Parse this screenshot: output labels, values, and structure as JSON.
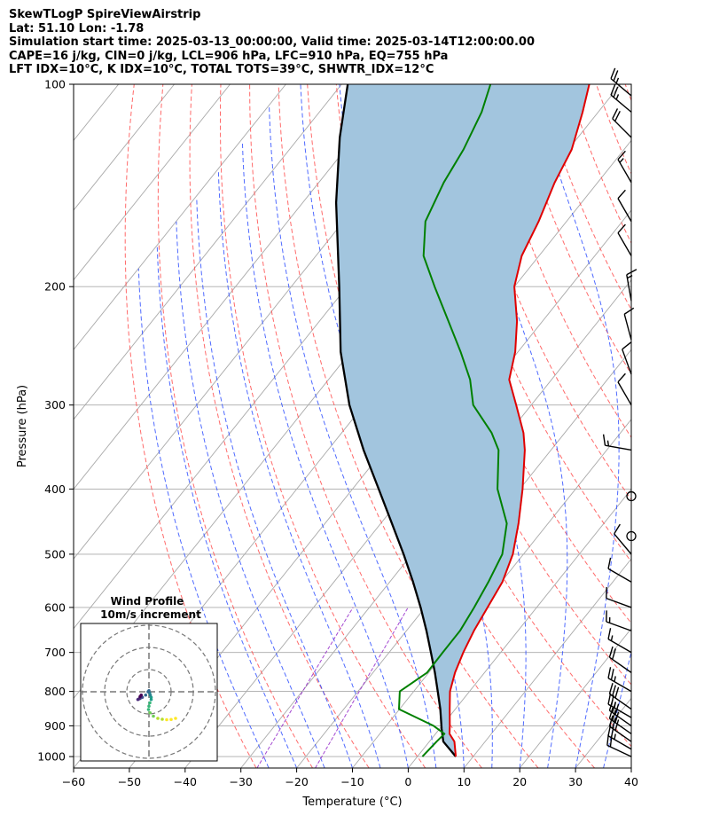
{
  "header": {
    "line1": "SkewTLogP SpireViewAirstrip",
    "line2": "Lat: 51.10   Lon: -1.78",
    "line3": "Simulation start time: 2025-03-13_00:00:00, Valid time: 2025-03-14T12:00:00.00",
    "line4": "CAPE=16 j/kg, CIN=0 j/kg, LCL=906 hPa, LFC=910 hPa, EQ=755 hPa",
    "line5": "LFT IDX=10°C, K IDX=10°C, TOTAL TOTS=39°C, SHWTR_IDX=12°C"
  },
  "colors": {
    "temperature": "#e00000",
    "dewpoint": "#008000",
    "parcel": "#000000",
    "cape_fill": "#a2c5de",
    "dry_adiabat": "#ff5050",
    "moist_adiabat": "#3050ff",
    "mixing_ratio": "#9933cc",
    "isotherm": "#aaaaaa",
    "isobar": "#aaaaaa"
  },
  "chart_data": {
    "type": "skewt",
    "xlabel": "Temperature ($^\\circ$C)",
    "ylabel": "Pressure (hPa)",
    "xlim": [
      -60,
      40
    ],
    "ylim": [
      1040,
      100
    ],
    "x_ticks": [
      -60,
      -50,
      -40,
      -30,
      -20,
      -10,
      0,
      10,
      20,
      30,
      40
    ],
    "y_ticks": [
      1000,
      900,
      800,
      700,
      600,
      500,
      400,
      300,
      200,
      100
    ],
    "y_scale": "log",
    "grid": true,
    "temperature": {
      "pressure": [
        1000,
        950,
        925,
        900,
        850,
        800,
        750,
        700,
        650,
        600,
        550,
        500,
        450,
        400,
        350,
        330,
        300,
        275,
        250,
        225,
        200,
        180,
        160,
        140,
        125,
        110,
        100
      ],
      "values": [
        6.9,
        4.5,
        2.5,
        1.4,
        -1.0,
        -3.5,
        -5.3,
        -6.7,
        -7.9,
        -8.8,
        -9.8,
        -11.9,
        -15.3,
        -19.5,
        -24.7,
        -27.4,
        -32.7,
        -37.6,
        -40.5,
        -44.6,
        -50.0,
        -53.1,
        -55.0,
        -57.7,
        -59.4,
        -62.8,
        -65.6
      ]
    },
    "dewpoint": {
      "pressure": [
        1000,
        950,
        925,
        900,
        850,
        800,
        750,
        700,
        650,
        600,
        550,
        500,
        450,
        400,
        350,
        330,
        300,
        275,
        250,
        225,
        200,
        180,
        160,
        140,
        125,
        110,
        100
      ],
      "values": [
        0.9,
        1.3,
        1.6,
        -1.5,
        -10.1,
        -12.5,
        -10.3,
        -10.4,
        -10.4,
        -11.2,
        -12.3,
        -13.8,
        -17.4,
        -24.0,
        -29.4,
        -33.1,
        -40.4,
        -44.6,
        -50.3,
        -56.9,
        -64.3,
        -70.7,
        -75.3,
        -77.6,
        -78.8,
        -80.9,
        -83.3
      ]
    },
    "parcel": {
      "pressure": [
        1000,
        950,
        910,
        850,
        800,
        750,
        700,
        650,
        600,
        550,
        500,
        450,
        400,
        350,
        300,
        250,
        200,
        150,
        120,
        100
      ],
      "values": [
        6.9,
        2.5,
        0.4,
        -2.7,
        -5.7,
        -8.9,
        -12.5,
        -16.4,
        -20.8,
        -25.8,
        -31.5,
        -38.0,
        -45.3,
        -53.6,
        -62.6,
        -71.8,
        -81.4,
        -94.0,
        -102.7,
        -108.9
      ]
    },
    "cape_fill_between": [
      "parcel",
      "temperature"
    ],
    "wind_barbs": {
      "pressure": [
        1000,
        975,
        950,
        925,
        900,
        875,
        850,
        800,
        750,
        700,
        650,
        600,
        550,
        500,
        470,
        410,
        350,
        300,
        270,
        240,
        210,
        180,
        160,
        140,
        120,
        110,
        104
      ],
      "speed_kt": [
        20,
        25,
        30,
        32,
        28,
        25,
        30,
        25,
        20,
        15,
        15,
        12,
        8,
        10,
        0,
        0,
        15,
        10,
        10,
        12,
        15,
        10,
        12,
        15,
        20,
        25,
        25
      ],
      "direction_deg": [
        295,
        300,
        305,
        305,
        305,
        300,
        305,
        300,
        305,
        300,
        290,
        290,
        300,
        320,
        0,
        0,
        280,
        330,
        340,
        345,
        350,
        330,
        330,
        330,
        315,
        310,
        310
      ]
    },
    "wind_profile_inset": {
      "title": "Wind Profile",
      "subtitle": "10m/s increment",
      "ring_count": 3,
      "hodograph": {
        "u": [
          12,
          10,
          8,
          6,
          4,
          2,
          0.5,
          -0.2,
          0.0,
          0.4,
          1.0,
          1.0,
          0.6,
          0.3,
          0.0,
          -0.4,
          -1.5,
          -3.0,
          -4.0,
          -4.5,
          -5.0,
          -4.0,
          -3.5
        ],
        "v": [
          -12,
          -12.5,
          -12.6,
          -12.4,
          -12.0,
          -11.0,
          -9.5,
          -8.0,
          -6.5,
          -5.0,
          -3.5,
          -2.5,
          -1.5,
          -0.5,
          0.5,
          0.0,
          -1.5,
          -2.5,
          -3.0,
          -3.2,
          -3.5,
          -2.2,
          -1.5
        ]
      }
    }
  }
}
